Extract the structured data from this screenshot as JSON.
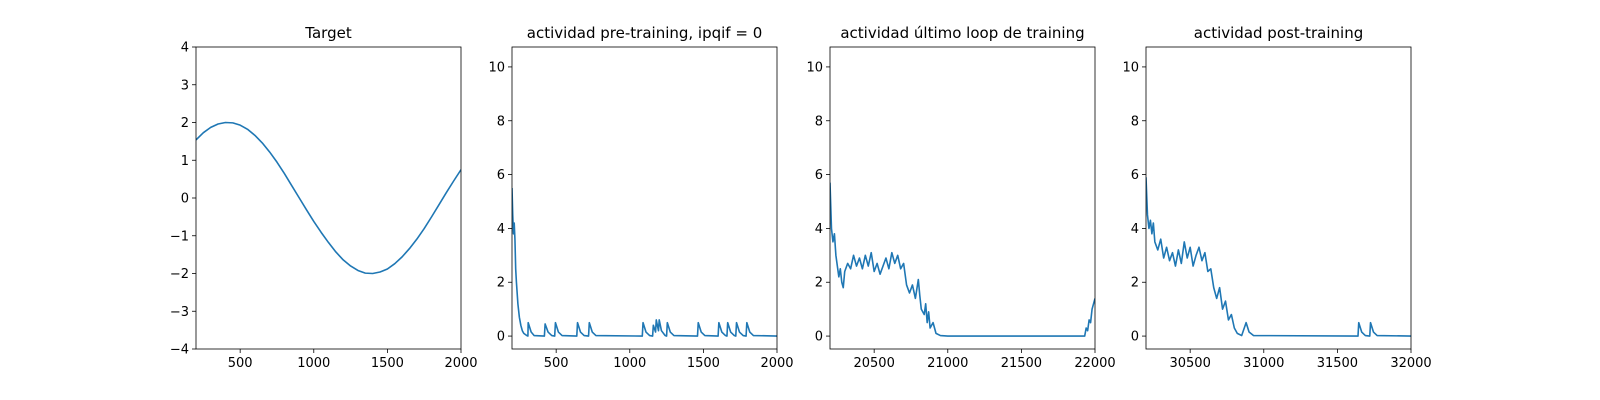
{
  "chart_data": [
    {
      "type": "line",
      "title": "Target",
      "color": "#1f77b4",
      "x": [
        200,
        250,
        300,
        350,
        400,
        450,
        500,
        550,
        600,
        650,
        700,
        750,
        800,
        850,
        900,
        950,
        1000,
        1050,
        1100,
        1150,
        1200,
        1250,
        1300,
        1350,
        1400,
        1450,
        1500,
        1550,
        1600,
        1650,
        1700,
        1750,
        1800,
        1850,
        1900,
        1950,
        2000
      ],
      "values": [
        1.54,
        1.73,
        1.87,
        1.96,
        2.0,
        1.99,
        1.93,
        1.82,
        1.66,
        1.46,
        1.22,
        0.95,
        0.65,
        0.33,
        0.01,
        -0.31,
        -0.62,
        -0.91,
        -1.18,
        -1.43,
        -1.64,
        -1.8,
        -1.92,
        -1.99,
        -2.0,
        -1.96,
        -1.88,
        -1.74,
        -1.56,
        -1.34,
        -1.09,
        -0.81,
        -0.5,
        -0.18,
        0.14,
        0.45,
        0.75
      ],
      "xlim": [
        200,
        2000
      ],
      "xticks": [
        500,
        1000,
        1500,
        2000
      ],
      "ylim": [
        -4,
        4
      ],
      "yticks": [
        {
          "value": -4,
          "label": "−4"
        },
        {
          "value": -3,
          "label": "−3"
        },
        {
          "value": -2,
          "label": "−2"
        },
        {
          "value": -1,
          "label": "−1"
        },
        0,
        1,
        2,
        3,
        4
      ]
    },
    {
      "type": "line",
      "title": "actividad pre-training, ipqif = 0",
      "color": "#1f77b4",
      "x": [
        200,
        205,
        210,
        215,
        220,
        225,
        230,
        240,
        250,
        260,
        270,
        280,
        300,
        308,
        310,
        330,
        350,
        420,
        425,
        445,
        470,
        490,
        495,
        515,
        540,
        640,
        645,
        665,
        690,
        720,
        725,
        745,
        770,
        1085,
        1090,
        1110,
        1135,
        1155,
        1160,
        1175,
        1180,
        1195,
        1200,
        1215,
        1240,
        1250,
        1255,
        1275,
        1300,
        1460,
        1465,
        1485,
        1510,
        1600,
        1605,
        1625,
        1650,
        1660,
        1665,
        1685,
        1710,
        1720,
        1725,
        1745,
        1770,
        1790,
        1795,
        1815,
        1840,
        2000
      ],
      "values": [
        5.5,
        4.5,
        3.8,
        4.2,
        3.6,
        2.5,
        2.0,
        1.2,
        0.7,
        0.4,
        0.2,
        0.1,
        0.02,
        0,
        0.5,
        0.15,
        0.02,
        0,
        0.45,
        0.15,
        0.02,
        0,
        0.5,
        0.15,
        0.02,
        0,
        0.5,
        0.15,
        0.02,
        0,
        0.5,
        0.15,
        0.02,
        0,
        0.5,
        0.15,
        0.02,
        0,
        0.4,
        0.15,
        0.6,
        0.2,
        0.6,
        0.2,
        0.02,
        0,
        0.5,
        0.15,
        0.02,
        0,
        0.5,
        0.15,
        0.02,
        0,
        0.5,
        0.15,
        0.02,
        0,
        0.5,
        0.15,
        0.02,
        0,
        0.5,
        0.15,
        0.02,
        0,
        0.5,
        0.15,
        0.02,
        0
      ],
      "xlim": [
        200,
        2000
      ],
      "xticks": [
        500,
        1000,
        1500,
        2000
      ],
      "ylim": [
        -0.48,
        10.74
      ],
      "yticks": [
        0,
        2,
        4,
        6,
        8,
        10
      ]
    },
    {
      "type": "line",
      "title": "actividad último loop de training",
      "color": "#1f77b4",
      "x": [
        20200,
        20210,
        20220,
        20230,
        20240,
        20250,
        20260,
        20270,
        20280,
        20290,
        20300,
        20320,
        20340,
        20360,
        20380,
        20400,
        20420,
        20440,
        20460,
        20480,
        20500,
        20520,
        20540,
        20560,
        20580,
        20600,
        20620,
        20640,
        20660,
        20680,
        20700,
        20720,
        20740,
        20760,
        20780,
        20800,
        20810,
        20820,
        20840,
        20850,
        20860,
        20870,
        20880,
        20900,
        20920,
        20950,
        21000,
        21930,
        21940,
        21950,
        21960,
        21970,
        21980,
        21990,
        22000
      ],
      "values": [
        5.7,
        4.0,
        3.5,
        3.8,
        3.0,
        2.6,
        2.2,
        2.5,
        2.0,
        1.8,
        2.4,
        2.7,
        2.5,
        3.0,
        2.6,
        2.9,
        2.5,
        3.0,
        2.6,
        3.1,
        2.4,
        2.7,
        2.3,
        2.6,
        2.9,
        2.5,
        3.1,
        2.7,
        3.0,
        2.5,
        2.7,
        1.9,
        1.6,
        1.9,
        1.4,
        2.1,
        1.5,
        1.0,
        0.8,
        1.2,
        0.5,
        0.9,
        0.3,
        0.5,
        0.1,
        0.02,
        0,
        0,
        0.3,
        0.2,
        0.6,
        0.5,
        1.0,
        1.2,
        1.4
      ],
      "xlim": [
        20200,
        22000
      ],
      "xticks": [
        20500,
        21000,
        21500,
        22000
      ],
      "ylim": [
        -0.48,
        10.74
      ],
      "yticks": [
        0,
        2,
        4,
        6,
        8,
        10
      ]
    },
    {
      "type": "line",
      "title": "actividad post-training",
      "color": "#1f77b4",
      "x": [
        30200,
        30210,
        30220,
        30230,
        30240,
        30250,
        30260,
        30280,
        30300,
        30320,
        30340,
        30360,
        30380,
        30400,
        30420,
        30440,
        30460,
        30480,
        30500,
        30520,
        30540,
        30560,
        30580,
        30600,
        30620,
        30640,
        30660,
        30680,
        30700,
        30720,
        30740,
        30760,
        30780,
        30800,
        30820,
        30850,
        30880,
        30900,
        30930,
        31640,
        31645,
        31665,
        31690,
        31720,
        31725,
        31745,
        31770,
        32000
      ],
      "values": [
        5.9,
        4.5,
        4.0,
        4.3,
        3.8,
        4.2,
        3.5,
        3.2,
        3.6,
        2.9,
        3.3,
        2.8,
        3.1,
        2.6,
        3.2,
        2.7,
        3.5,
        2.9,
        3.3,
        2.6,
        3.0,
        3.3,
        2.8,
        3.1,
        2.4,
        2.5,
        1.8,
        1.4,
        1.8,
        1.0,
        1.3,
        0.6,
        0.8,
        0.3,
        0.1,
        0.02,
        0.5,
        0.15,
        0.02,
        0,
        0.5,
        0.15,
        0.02,
        0,
        0.5,
        0.15,
        0.02,
        0
      ],
      "xlim": [
        30200,
        32000
      ],
      "xticks": [
        30500,
        31000,
        31500,
        32000
      ],
      "ylim": [
        -0.48,
        10.74
      ],
      "yticks": [
        0,
        2,
        4,
        6,
        8,
        10
      ]
    }
  ]
}
